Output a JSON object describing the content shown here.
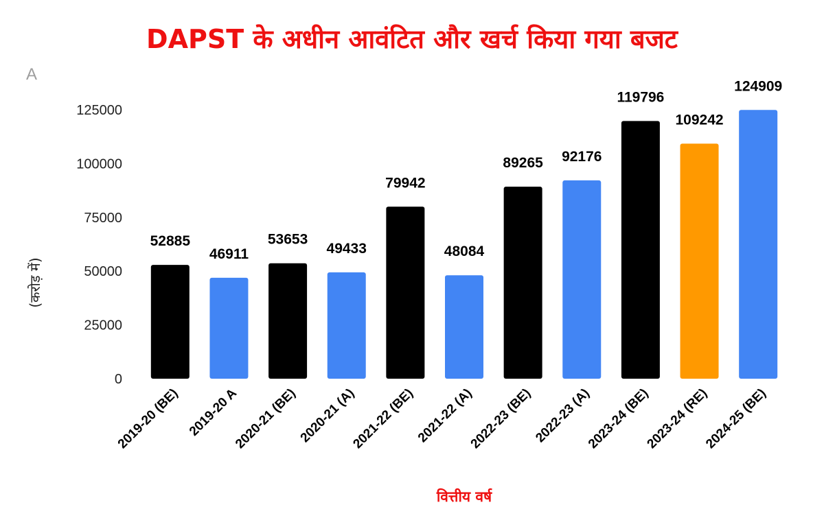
{
  "chart_data": {
    "type": "bar",
    "title": "DAPST के अधीन आवंटित और खर्च किया गया बजट",
    "corner_label": "A",
    "xlabel": "वित्तीय वर्ष",
    "ylabel": "(करोड़ में)",
    "ylim": [
      0,
      125000
    ],
    "yticks": [
      "0",
      "25000",
      "50000",
      "75000",
      "100000",
      "125000"
    ],
    "ytick_values": [
      0,
      25000,
      50000,
      75000,
      100000,
      125000
    ],
    "grid": false,
    "legend": "none",
    "categories": [
      "2019-20 (BE)",
      "2019-20 A",
      "2020-21 (BE)",
      "2020-21 (A)",
      "2021-22 (BE)",
      "2021-22  (A)",
      "2022-23 (BE)",
      "2022-23 (A)",
      "2023-24 (BE)",
      "2023-24 (RE)",
      "2024-25 (BE)"
    ],
    "values": [
      52885,
      46911,
      53653,
      49433,
      79942,
      48084,
      89265,
      92176,
      119796,
      109242,
      124909
    ],
    "data_labels": [
      "52885",
      "46911",
      "53653",
      "49433",
      "79942",
      "48084",
      "89265",
      "92176",
      "119796",
      "109242",
      "124909"
    ],
    "bar_colors": [
      "#000000",
      "#4285f4",
      "#000000",
      "#4285f4",
      "#000000",
      "#4285f4",
      "#000000",
      "#4285f4",
      "#000000",
      "#ff9900",
      "#4285f4"
    ],
    "colors": {
      "title": "#ee1111",
      "xlabel": "#ee1111",
      "budget_estimate": "#000000",
      "actual": "#4285f4",
      "revised_estimate": "#ff9900"
    }
  }
}
